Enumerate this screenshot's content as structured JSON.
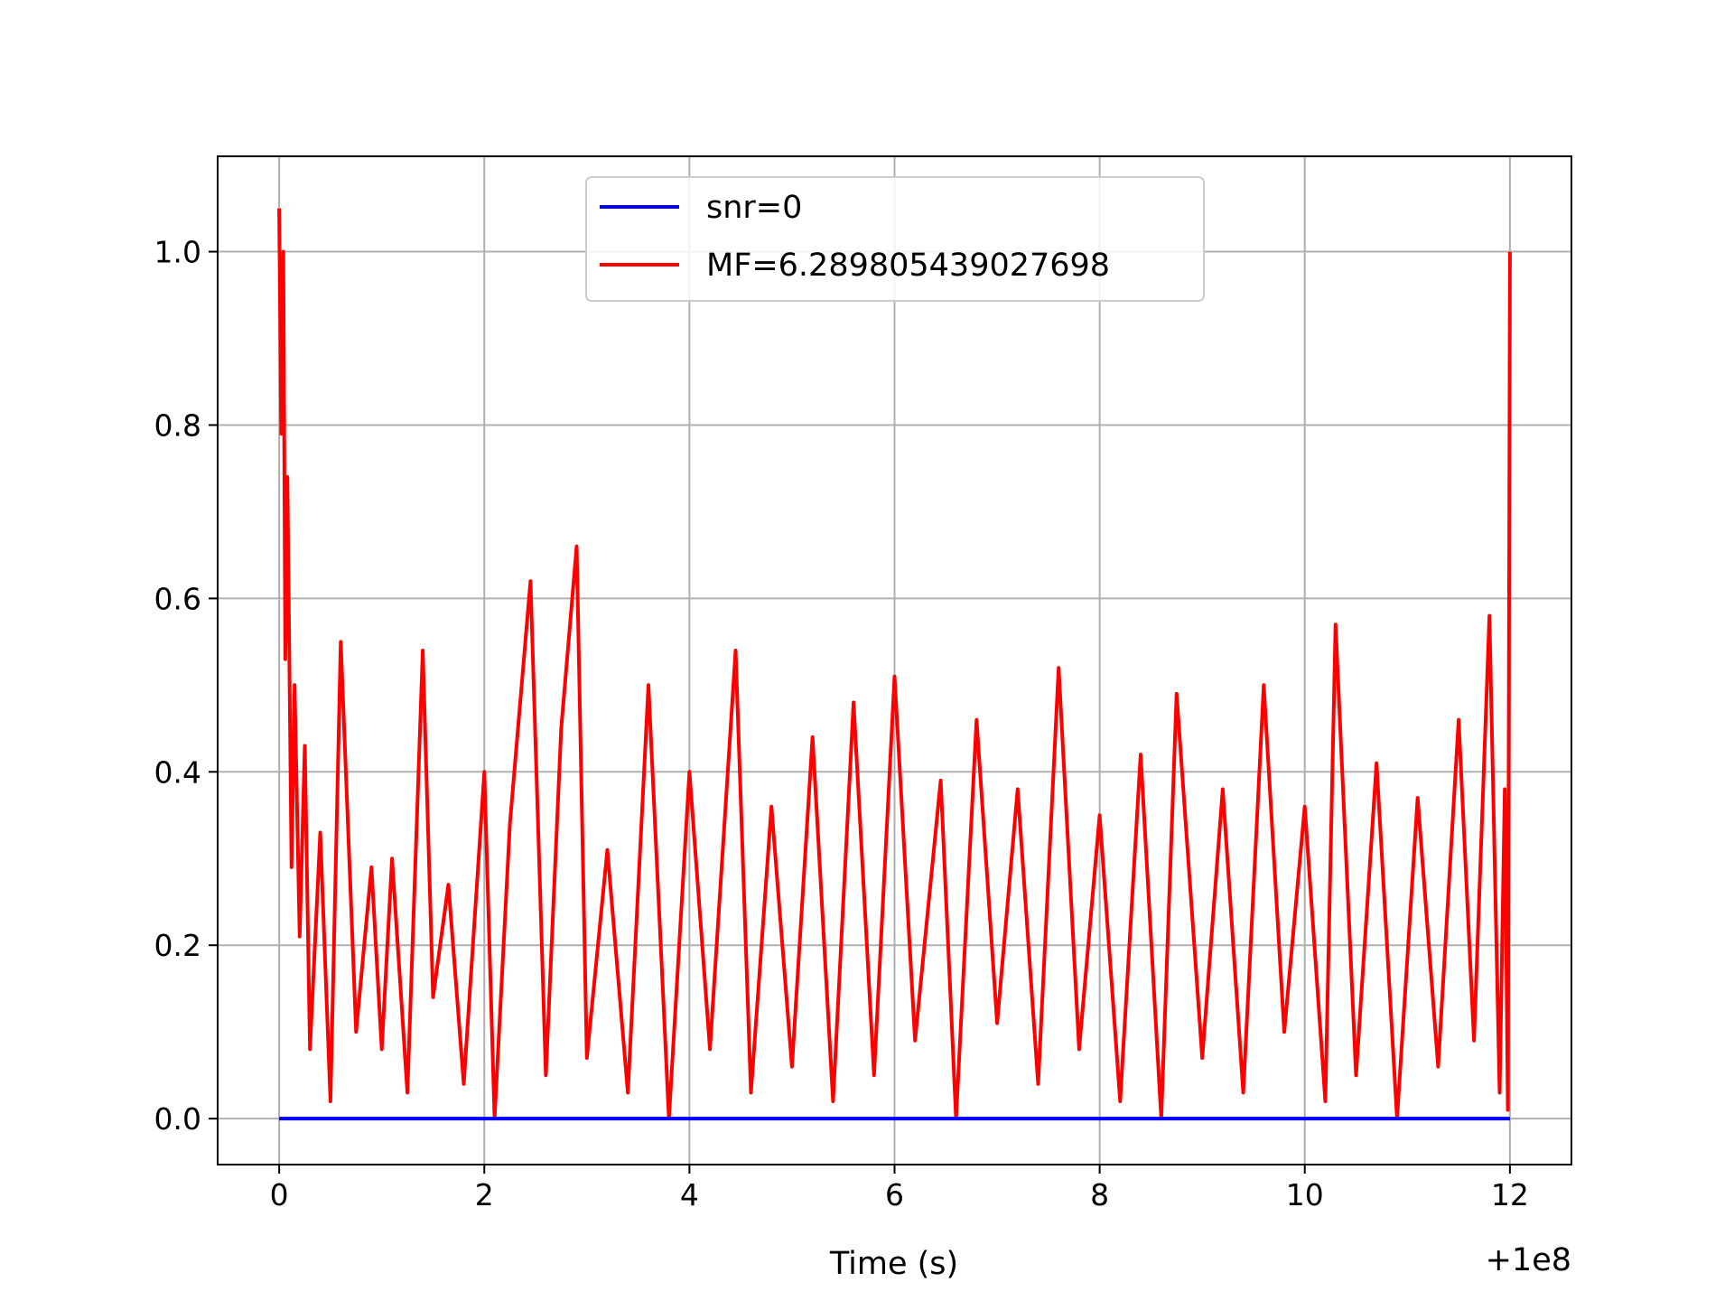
{
  "chart_data": {
    "type": "line",
    "title": "",
    "xlabel": "Time (s)",
    "ylabel": "",
    "x_offset_label": "+1e8",
    "xlim": [
      -0.6,
      12.6
    ],
    "ylim": [
      -0.053,
      1.11
    ],
    "x_ticks": [
      0,
      2,
      4,
      6,
      8,
      10,
      12
    ],
    "y_ticks": [
      0.0,
      0.2,
      0.4,
      0.6,
      0.8,
      1.0
    ],
    "x_tick_labels": [
      "0",
      "2",
      "4",
      "6",
      "8",
      "10",
      "12"
    ],
    "y_tick_labels": [
      "0.0",
      "0.2",
      "0.4",
      "0.6",
      "0.8",
      "1.0"
    ],
    "grid": true,
    "legend_position": "upper-center",
    "series": [
      {
        "name": "snr=0",
        "color": "#0000ff",
        "x": [
          0,
          12
        ],
        "y": [
          0.0,
          0.0
        ]
      },
      {
        "name": "MF=6.289805439027698",
        "color": "#ff0000",
        "x": [
          0,
          0.02,
          0.04,
          0.06,
          0.08,
          0.1,
          0.12,
          0.15,
          0.2,
          0.25,
          0.3,
          0.4,
          0.5,
          0.6,
          0.75,
          0.9,
          1.0,
          1.1,
          1.25,
          1.4,
          1.5,
          1.65,
          1.8,
          2.0,
          2.1,
          2.25,
          2.45,
          2.6,
          2.75,
          2.9,
          3.0,
          3.2,
          3.4,
          3.6,
          3.8,
          4.0,
          4.2,
          4.45,
          4.6,
          4.8,
          5.0,
          5.2,
          5.4,
          5.6,
          5.8,
          6.0,
          6.2,
          6.45,
          6.6,
          6.8,
          7.0,
          7.2,
          7.4,
          7.6,
          7.8,
          8.0,
          8.2,
          8.4,
          8.6,
          8.75,
          9.0,
          9.2,
          9.4,
          9.6,
          9.8,
          10.0,
          10.2,
          10.3,
          10.5,
          10.7,
          10.9,
          11.1,
          11.3,
          11.5,
          11.65,
          11.8,
          11.9,
          11.95,
          11.98,
          12.0
        ],
        "y": [
          1.05,
          0.79,
          1.0,
          0.53,
          0.74,
          0.52,
          0.29,
          0.5,
          0.21,
          0.43,
          0.08,
          0.33,
          0.02,
          0.55,
          0.1,
          0.29,
          0.08,
          0.3,
          0.03,
          0.54,
          0.14,
          0.27,
          0.04,
          0.4,
          0.0,
          0.34,
          0.62,
          0.05,
          0.45,
          0.66,
          0.07,
          0.31,
          0.03,
          0.5,
          0.0,
          0.4,
          0.08,
          0.54,
          0.03,
          0.36,
          0.06,
          0.44,
          0.02,
          0.48,
          0.05,
          0.51,
          0.09,
          0.39,
          0.0,
          0.46,
          0.11,
          0.38,
          0.04,
          0.52,
          0.08,
          0.35,
          0.02,
          0.42,
          0.0,
          0.49,
          0.07,
          0.38,
          0.03,
          0.5,
          0.1,
          0.36,
          0.02,
          0.57,
          0.05,
          0.41,
          0.0,
          0.37,
          0.06,
          0.46,
          0.09,
          0.58,
          0.03,
          0.38,
          0.01,
          1.0
        ]
      }
    ]
  }
}
